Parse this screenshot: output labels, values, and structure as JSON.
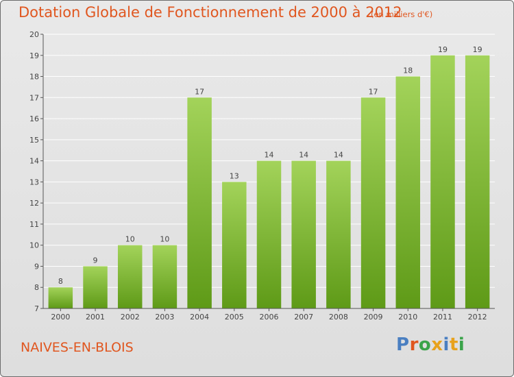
{
  "header": {
    "title": "Dotation Globale de Fonctionnement de 2000 à 2012",
    "subtitle": "(en milliers d'€)"
  },
  "footer": {
    "commune": "NAIVES-EN-BLOIS",
    "logo": "Proxiti",
    "logo_colors": [
      "#4a7fc1",
      "#e0561f",
      "#3aa34a",
      "#e8a21c",
      "#4a7fc1",
      "#e8a21c",
      "#3aa34a"
    ]
  },
  "colors": {
    "accent": "#e0561f",
    "bar_light": "#a3d35a",
    "bar_dark": "#5e9a17",
    "axis": "#555555",
    "grid": "#ffffff"
  },
  "chart_data": {
    "type": "bar",
    "categories": [
      "2000",
      "2001",
      "2002",
      "2003",
      "2004",
      "2005",
      "2006",
      "2007",
      "2008",
      "2009",
      "2010",
      "2011",
      "2012"
    ],
    "values": [
      8,
      9,
      10,
      10,
      17,
      13,
      14,
      14,
      14,
      17,
      18,
      19,
      19
    ],
    "data_labels": [
      "8",
      "9",
      "10",
      "10",
      "17",
      "13",
      "14",
      "14",
      "14",
      "17",
      "18",
      "19",
      "19"
    ],
    "yticks": [
      7,
      8,
      9,
      10,
      11,
      12,
      13,
      14,
      15,
      16,
      17,
      18,
      19,
      20
    ],
    "ylim": [
      7,
      20
    ],
    "title": "Dotation Globale de Fonctionnement de 2000 à 2012",
    "subtitle": "(en milliers d'€)",
    "xlabel": "",
    "ylabel": "",
    "grid": true
  }
}
